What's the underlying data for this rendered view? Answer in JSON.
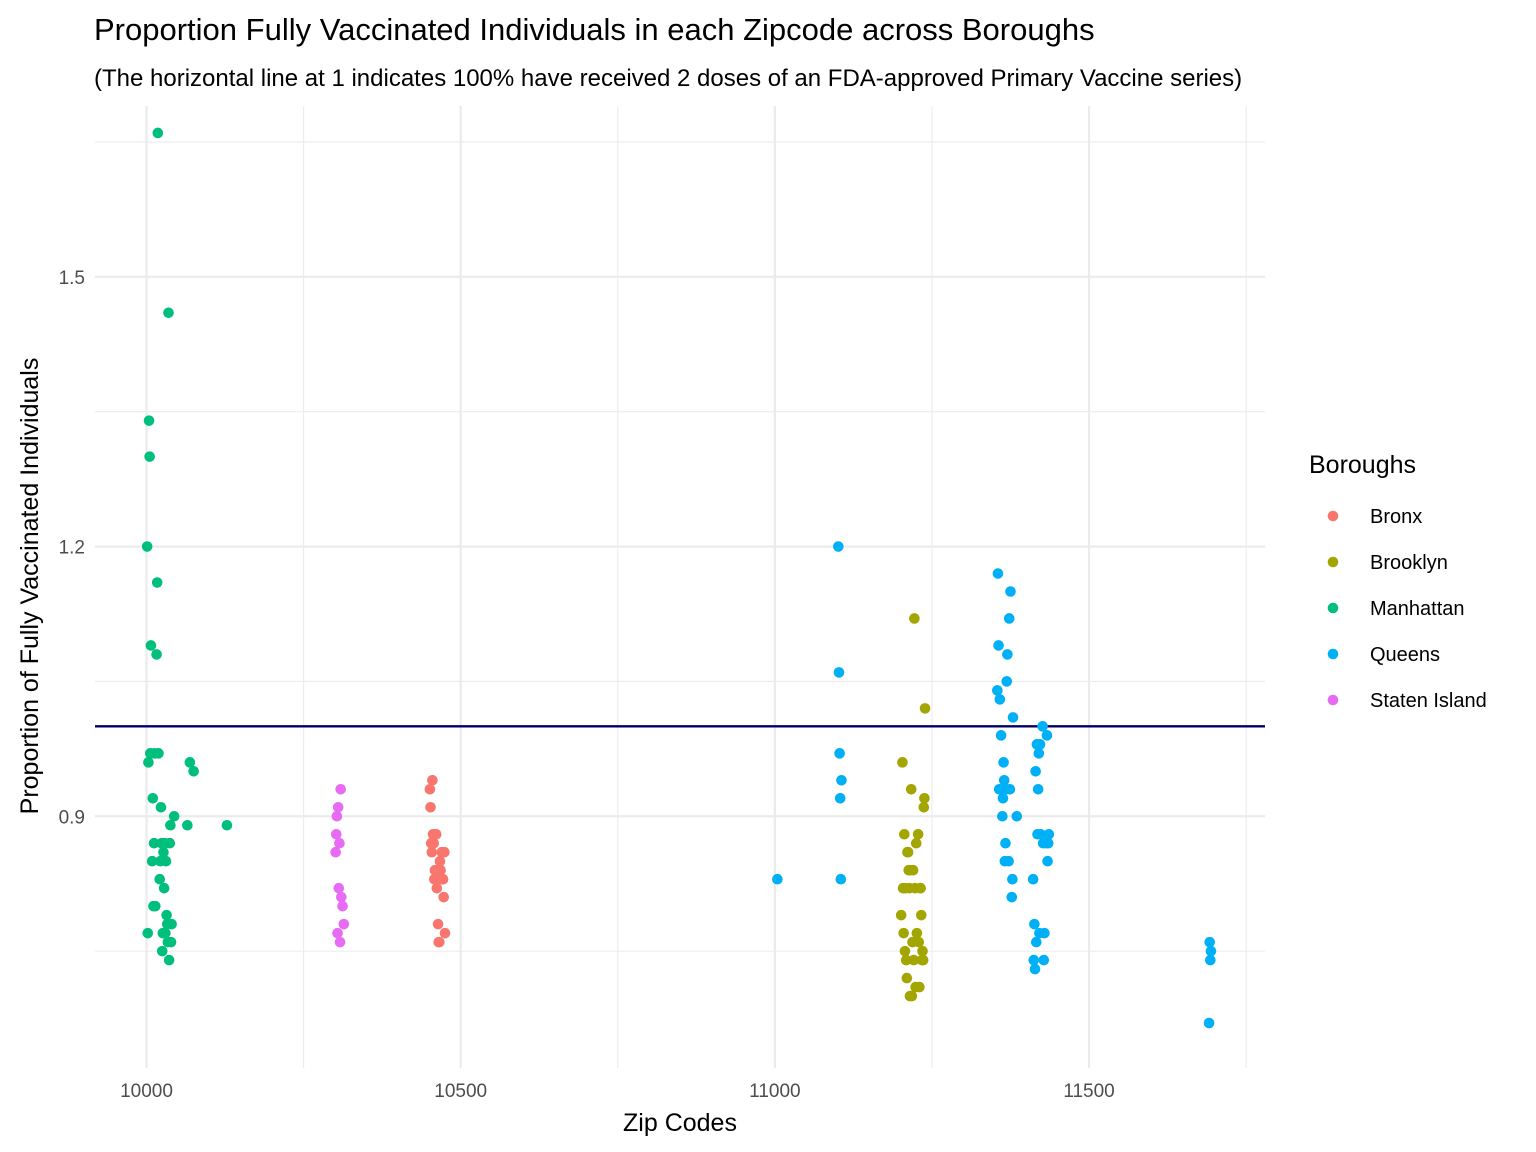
{
  "chart_data": {
    "type": "scatter",
    "title": "Proportion Fully Vaccinated Individuals in each Zipcode across Boroughs",
    "subtitle": "(The horizontal line at 1 indicates 100% have received 2 doses of an FDA-approved Primary Vaccine series)",
    "xlabel": "Zip Codes",
    "ylabel": "Proportion of Fully Vaccinated Individuals",
    "xlim": [
      9918,
      11780
    ],
    "ylim": [
      0.62,
      1.69
    ],
    "x_ticks": [
      10000,
      10500,
      11000,
      11500
    ],
    "x_tick_labels": [
      "10000",
      "10500",
      "11000",
      "11500"
    ],
    "x_minor": [
      10250,
      10750,
      11250,
      11750
    ],
    "y_ticks": [
      0.9,
      1.2,
      1.5
    ],
    "y_tick_labels": [
      "0.9",
      "1.2",
      "1.5"
    ],
    "y_minor": [
      0.75,
      1.05,
      1.35,
      1.65
    ],
    "grid": true,
    "reference_line": {
      "y": 1.0,
      "color": "#000066"
    },
    "legend": {
      "title": "Boroughs",
      "position": "right"
    },
    "series": [
      {
        "name": "Bronx",
        "color": "#F8766D",
        "x": [
          10451,
          10452,
          10453,
          10454,
          10455,
          10456,
          10457,
          10458,
          10459,
          10460,
          10461,
          10462,
          10463,
          10464,
          10465,
          10466,
          10467,
          10468,
          10469,
          10470,
          10471,
          10472,
          10473,
          10474,
          10475
        ],
        "y": [
          0.93,
          0.91,
          0.87,
          0.86,
          0.94,
          0.88,
          0.87,
          0.83,
          0.84,
          0.88,
          0.88,
          0.82,
          0.84,
          0.78,
          0.76,
          0.76,
          0.85,
          0.84,
          0.83,
          0.86,
          0.83,
          0.83,
          0.81,
          0.86,
          0.77
        ]
      },
      {
        "name": "Brooklyn",
        "color": "#A3A500",
        "x": [
          11201,
          11203,
          11204,
          11205,
          11206,
          11207,
          11208,
          11209,
          11210,
          11211,
          11212,
          11213,
          11214,
          11215,
          11216,
          11217,
          11218,
          11219,
          11220,
          11221,
          11222,
          11223,
          11224,
          11225,
          11226,
          11228,
          11229,
          11230,
          11231,
          11232,
          11233,
          11234,
          11235,
          11236,
          11237,
          11238,
          11239
        ],
        "y": [
          0.79,
          0.96,
          0.82,
          0.77,
          0.88,
          0.75,
          0.82,
          0.74,
          0.72,
          0.86,
          0.86,
          0.84,
          0.82,
          0.7,
          0.84,
          0.93,
          0.7,
          0.76,
          0.84,
          0.74,
          1.12,
          0.82,
          0.71,
          0.87,
          0.77,
          0.88,
          0.76,
          0.71,
          0.82,
          0.82,
          0.79,
          0.74,
          0.75,
          0.74,
          0.91,
          0.92,
          1.02
        ]
      },
      {
        "name": "Manhattan",
        "color": "#00BF7D",
        "x": [
          10001,
          10002,
          10003,
          10004,
          10005,
          10006,
          10007,
          10009,
          10010,
          10011,
          10012,
          10013,
          10014,
          10016,
          10017,
          10018,
          10019,
          10021,
          10022,
          10023,
          10024,
          10025,
          10026,
          10027,
          10028,
          10029,
          10030,
          10031,
          10032,
          10033,
          10034,
          10035,
          10036,
          10037,
          10038,
          10039,
          10040,
          10044,
          10065,
          10069,
          10075,
          10128
        ],
        "y": [
          1.2,
          0.77,
          0.96,
          1.34,
          1.3,
          0.97,
          1.09,
          0.85,
          0.92,
          0.8,
          0.87,
          0.97,
          0.8,
          1.08,
          1.16,
          1.66,
          0.97,
          0.83,
          0.85,
          0.91,
          0.87,
          0.75,
          0.77,
          0.86,
          0.82,
          0.87,
          0.77,
          0.85,
          0.79,
          0.78,
          0.76,
          1.46,
          0.74,
          0.87,
          0.89,
          0.76,
          0.78,
          0.9,
          0.89,
          0.96,
          0.95,
          0.89
        ]
      },
      {
        "name": "Queens",
        "color": "#00B0F6",
        "x": [
          11004,
          11101,
          11102,
          11103,
          11104,
          11105,
          11106,
          11354,
          11355,
          11356,
          11357,
          11358,
          11360,
          11361,
          11362,
          11363,
          11364,
          11365,
          11366,
          11367,
          11368,
          11369,
          11370,
          11372,
          11373,
          11374,
          11375,
          11377,
          11378,
          11379,
          11385,
          11411,
          11412,
          11413,
          11414,
          11415,
          11416,
          11417,
          11418,
          11419,
          11420,
          11421,
          11422,
          11423,
          11426,
          11427,
          11428,
          11429,
          11432,
          11433,
          11434,
          11435,
          11436,
          11691,
          11692,
          11693,
          11694
        ],
        "y": [
          0.83,
          1.2,
          1.06,
          0.97,
          0.92,
          0.83,
          0.94,
          1.04,
          1.17,
          1.09,
          0.93,
          1.03,
          0.99,
          0.93,
          0.9,
          0.92,
          0.96,
          0.94,
          0.85,
          0.87,
          0.93,
          1.05,
          1.08,
          0.85,
          1.12,
          0.93,
          1.15,
          0.81,
          0.83,
          1.01,
          0.9,
          0.83,
          0.74,
          0.78,
          0.73,
          0.95,
          0.76,
          0.98,
          0.88,
          0.93,
          0.97,
          0.77,
          0.98,
          0.88,
          1.0,
          0.87,
          0.74,
          0.77,
          0.87,
          0.99,
          0.85,
          0.87,
          0.88,
          0.67,
          0.76,
          0.74,
          0.75
        ]
      },
      {
        "name": "Staten Island",
        "color": "#E76BF3",
        "x": [
          10301,
          10302,
          10303,
          10304,
          10305,
          10306,
          10307,
          10308,
          10309,
          10310,
          10312,
          10314
        ],
        "y": [
          0.86,
          0.88,
          0.9,
          0.77,
          0.91,
          0.82,
          0.87,
          0.76,
          0.93,
          0.81,
          0.8,
          0.78
        ]
      }
    ]
  }
}
